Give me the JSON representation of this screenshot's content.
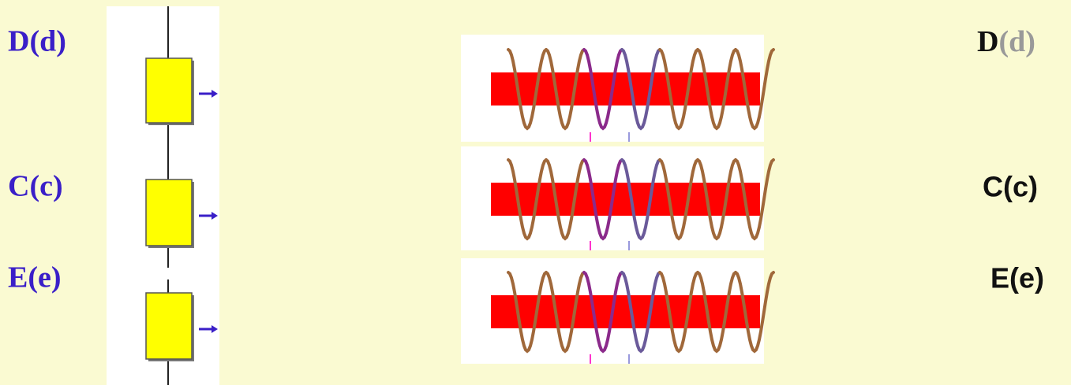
{
  "left_labels": [
    "D(d)",
    "C(c)",
    "E(e)"
  ],
  "right_labels": [
    {
      "main": "D",
      "paren": "(d)"
    },
    {
      "main": "C(c)"
    },
    {
      "main": "E(e)"
    }
  ]
}
